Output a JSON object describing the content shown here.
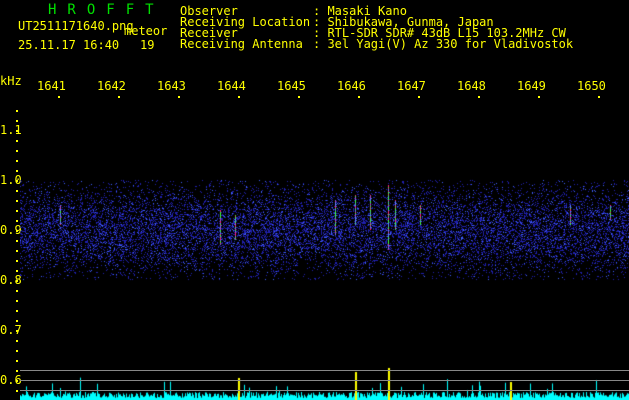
{
  "header": {
    "title": "HROFFT",
    "filename": "UT2511171640.png",
    "mode": "meteor",
    "datetime": "25.11.17 16:40",
    "count": "19",
    "fields": [
      {
        "label": "Observer",
        "value": ": Masaki Kano"
      },
      {
        "label": "Receiving Location",
        "value": ": Shibukawa, Gunma, Japan"
      },
      {
        "label": "Receiver",
        "value": ": RTL-SDR SDR# 43dB L15 103.2MHz CW"
      },
      {
        "label": "Receiving Antenna",
        "value": ": 3el Yagi(V) Az 330 for Vladivostok"
      }
    ]
  },
  "axes": {
    "x_unit": "kHz",
    "x_ticks": [
      "1641",
      "1642",
      "1643",
      "1644",
      "1645",
      "1646",
      "1647",
      "1648",
      "1649",
      "1650"
    ],
    "y_ticks": [
      "1.1",
      "1.0",
      "0.9",
      "0.8",
      "0.7",
      "0.6"
    ]
  },
  "colors": {
    "text": "#ffff00",
    "title": "#00e000",
    "noise": "#2020c0",
    "meter": "#00ffff"
  }
}
